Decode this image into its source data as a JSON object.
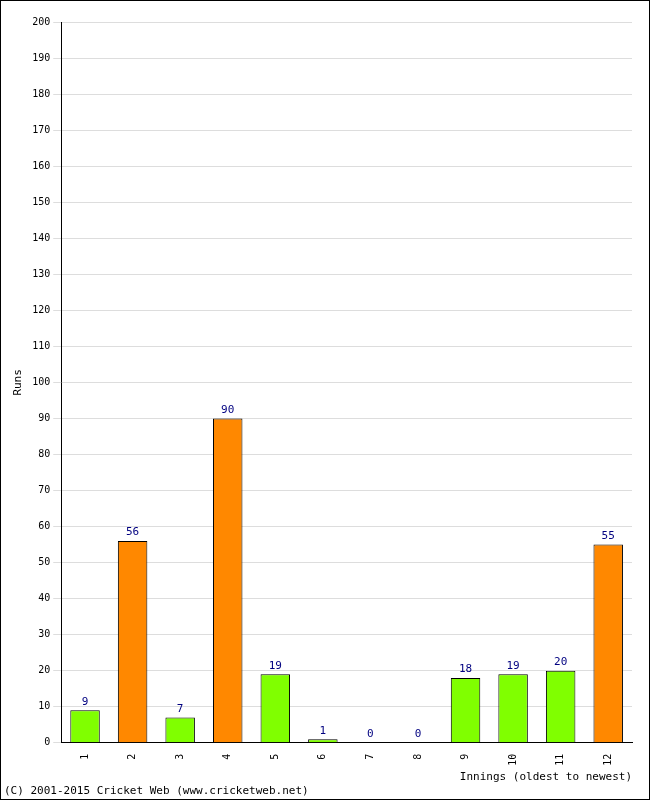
{
  "chart_data": {
    "type": "bar",
    "y_label": "Runs",
    "x_label": "Innings (oldest to newest)",
    "annotations": [
      "(C) 2001-2015 Cricket Web (www.cricketweb.net)"
    ],
    "categories": [
      "1",
      "2",
      "3",
      "4",
      "5",
      "6",
      "7",
      "8",
      "9",
      "10",
      "11",
      "12"
    ],
    "values": [
      9,
      56,
      7,
      90,
      19,
      1,
      0,
      0,
      18,
      19,
      20,
      55
    ],
    "colors": [
      "#80ff00",
      "#ff8800",
      "#80ff00",
      "#ff8800",
      "#80ff00",
      "#80ff00",
      "#80ff00",
      "#80ff00",
      "#80ff00",
      "#80ff00",
      "#80ff00",
      "#ff8800"
    ],
    "ylim": [
      0,
      200
    ],
    "yticks": [
      0,
      10,
      20,
      30,
      40,
      50,
      60,
      70,
      80,
      90,
      100,
      110,
      120,
      130,
      140,
      150,
      160,
      170,
      180,
      190,
      200
    ],
    "grid": true,
    "data_labels": true
  }
}
